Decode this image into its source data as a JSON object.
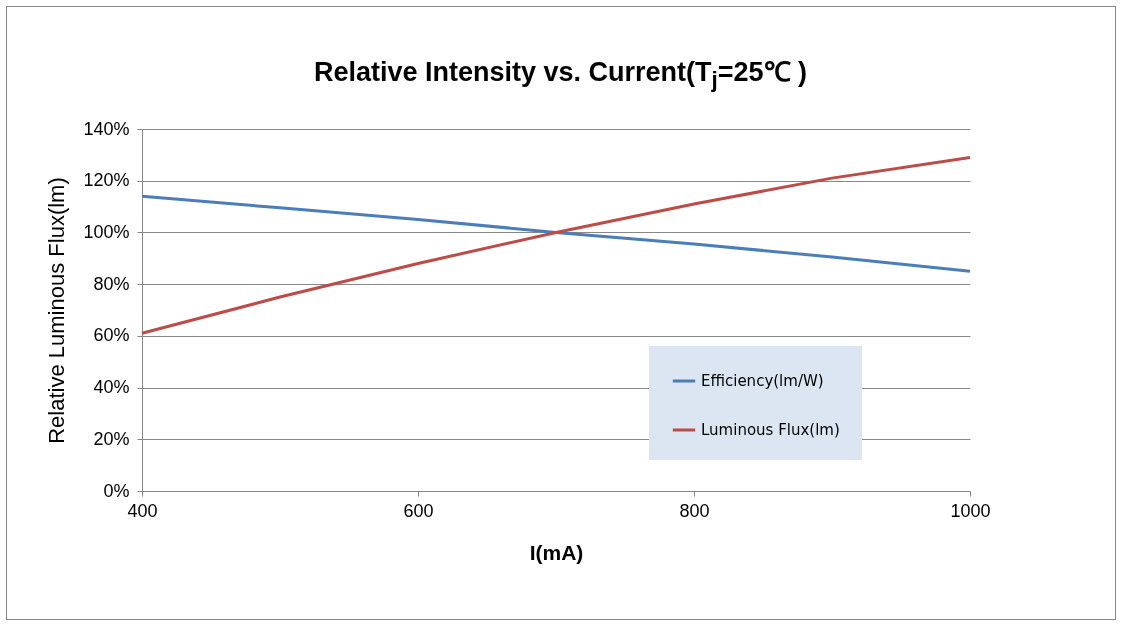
{
  "chart_data": {
    "type": "line",
    "title": "Relative Intensity vs. Current(T$_{j}$=25℃ )",
    "xlabel": "I(mA)",
    "ylabel": "Relative Luminous Flux(lm)",
    "x": [
      400,
      500,
      600,
      700,
      800,
      900,
      1000
    ],
    "series": [
      {
        "name": "Efficiency(lm/W)",
        "color": "#4a7ebb",
        "values": [
          114,
          109.5,
          105,
          100,
          95.5,
          90.5,
          85
        ]
      },
      {
        "name": "Luminous Flux(lm)",
        "color": "#be4b48",
        "values": [
          61,
          75,
          88,
          100,
          111,
          121,
          129
        ]
      }
    ],
    "xlim": [
      400,
      1000
    ],
    "xticks": [
      400,
      600,
      800,
      1000
    ],
    "ylim": [
      0,
      140
    ],
    "yticks": [
      {
        "value": 0,
        "label": "0%"
      },
      {
        "value": 20,
        "label": "20%"
      },
      {
        "value": 40,
        "label": "40%"
      },
      {
        "value": 60,
        "label": "60%"
      },
      {
        "value": 80,
        "label": "80%"
      },
      {
        "value": 100,
        "label": "100%"
      },
      {
        "value": 120,
        "label": "120%"
      },
      {
        "value": 140,
        "label": "140%"
      }
    ],
    "grid": "y",
    "legend": "bottom right",
    "marker": "none",
    "line_style": "solid"
  }
}
